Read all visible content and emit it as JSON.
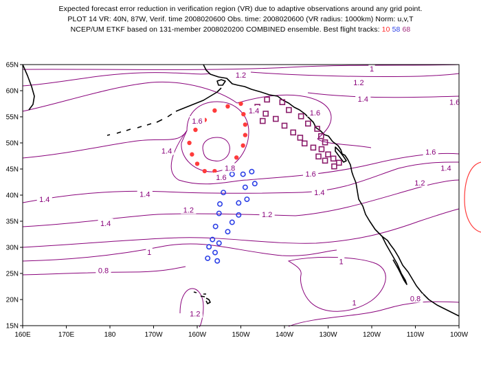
{
  "header": {
    "line1": "Expected forecast error reduction in verification region (VR) due to adaptive observations around any grid point.",
    "line2": "PLOT 14 VR: 40N, 87W, Verif. time 2008020600 Obs. time: 2008020600 (VR radius: 1000km) Norm: u,v,T",
    "line3": "NCEP/UM ETKF based on 131-member 2008020200 COMBINED ensemble.  Best flight tracks:",
    "track_ids": [
      "10",
      "58",
      "68"
    ]
  },
  "map": {
    "lat_labels": [
      "65N",
      "60N",
      "55N",
      "50N",
      "45N",
      "40N",
      "35N",
      "30N",
      "25N",
      "20N",
      "15N"
    ],
    "lon_labels": [
      "160E",
      "170E",
      "180",
      "170W",
      "160W",
      "150W",
      "140W",
      "130W",
      "120W",
      "110W",
      "100W"
    ],
    "contour_color": "#88007a",
    "contour_labels": [
      {
        "text": "1.2",
        "lon": -150,
        "lat": 63
      },
      {
        "text": "1",
        "lon": -120,
        "lat": 64.2
      },
      {
        "text": "1.2",
        "lon": -123,
        "lat": 61.6
      },
      {
        "text": "1.4",
        "lon": -122,
        "lat": 58.4
      },
      {
        "text": "1.6",
        "lon": -101,
        "lat": 57.8
      },
      {
        "text": "1.4",
        "lon": -147,
        "lat": 56.2
      },
      {
        "text": "1.6",
        "lon": -133,
        "lat": 55.8
      },
      {
        "text": "1.6",
        "lon": -160,
        "lat": 54.2
      },
      {
        "text": "1.4",
        "lon": -167,
        "lat": 48.5
      },
      {
        "text": "1.8",
        "lon": -152.5,
        "lat": 45.2
      },
      {
        "text": "1.6",
        "lon": -154.5,
        "lat": 43.4
      },
      {
        "text": "1.6",
        "lon": -134,
        "lat": 44.1
      },
      {
        "text": "1.6",
        "lon": -106.5,
        "lat": 48.3
      },
      {
        "text": "1.4",
        "lon": -103,
        "lat": 45.2
      },
      {
        "text": "1.2",
        "lon": -109,
        "lat": 42.4
      },
      {
        "text": "1.4",
        "lon": -172,
        "lat": 40.2
      },
      {
        "text": "1.4",
        "lon": -195,
        "lat": 39.2
      },
      {
        "text": "1.4",
        "lon": -132,
        "lat": 40.5
      },
      {
        "text": "1.2",
        "lon": -162,
        "lat": 37.2
      },
      {
        "text": "1.2",
        "lon": -144,
        "lat": 36.3
      },
      {
        "text": "1.4",
        "lon": -181,
        "lat": 34.6
      },
      {
        "text": "1",
        "lon": -171,
        "lat": 29.1
      },
      {
        "text": "1",
        "lon": -127,
        "lat": 27.3
      },
      {
        "text": "0.8",
        "lon": -181.5,
        "lat": 25.6
      },
      {
        "text": "1",
        "lon": -124,
        "lat": 19.4
      },
      {
        "text": "0.8",
        "lon": -110,
        "lat": 20.2
      },
      {
        "text": "1.2",
        "lon": -160.5,
        "lat": 17.3
      }
    ],
    "tracks": [
      {
        "id": "10",
        "color": "#ff3b3b",
        "marker": "filled-circle",
        "points": [
          [
            -150,
            57.5
          ],
          [
            -153,
            57
          ],
          [
            -156,
            56.2
          ],
          [
            -158.3,
            54.4
          ],
          [
            -160.4,
            52.5
          ],
          [
            -161.8,
            50
          ],
          [
            -161.2,
            47.8
          ],
          [
            -160,
            46
          ],
          [
            -158.3,
            44.6
          ],
          [
            -156,
            44.6
          ],
          [
            -153.3,
            45.4
          ],
          [
            -151,
            47.2
          ],
          [
            -149.5,
            49.5
          ],
          [
            -149,
            51.5
          ],
          [
            -149,
            53.5
          ],
          [
            -149.4,
            55.5
          ]
        ]
      },
      {
        "id": "58",
        "color": "#2b3fe6",
        "marker": "open-circle",
        "points": [
          [
            -147.5,
            44.5
          ],
          [
            -149.5,
            44
          ],
          [
            -152,
            44
          ],
          [
            -153.5,
            43.2
          ],
          [
            -146.8,
            42.2
          ],
          [
            -149,
            41.5
          ],
          [
            -154,
            40.5
          ],
          [
            -148.6,
            39.2
          ],
          [
            -150.5,
            38.5
          ],
          [
            -154.8,
            38.3
          ],
          [
            -155,
            36.5
          ],
          [
            -150.5,
            36.2
          ],
          [
            -152,
            34.8
          ],
          [
            -155.8,
            34
          ],
          [
            -153,
            33
          ],
          [
            -156.5,
            31.5
          ],
          [
            -155,
            30.8
          ],
          [
            -157.3,
            30.1
          ],
          [
            -155.9,
            29
          ],
          [
            -157.6,
            27.9
          ],
          [
            -155.4,
            27.4
          ]
        ]
      },
      {
        "id": "68",
        "color": "#8a1b6a",
        "marker": "open-square",
        "points": [
          [
            -144,
            58.3
          ],
          [
            -140.5,
            57.8
          ],
          [
            -139,
            56.3
          ],
          [
            -136.2,
            55.1
          ],
          [
            -134.6,
            53.7
          ],
          [
            -132.5,
            52.7
          ],
          [
            -131.6,
            51.3
          ],
          [
            -130.7,
            50.1
          ],
          [
            -131.5,
            48.8
          ],
          [
            -130,
            47.8
          ],
          [
            -128.8,
            47
          ],
          [
            -127.5,
            46.2
          ],
          [
            -142,
            54.6
          ],
          [
            -140,
            53.3
          ],
          [
            -138,
            52
          ],
          [
            -136.4,
            51
          ],
          [
            -135.4,
            49.9
          ],
          [
            -133.4,
            49.1
          ],
          [
            -132.2,
            47.4
          ],
          [
            -130.7,
            46.6
          ],
          [
            -128.6,
            45.5
          ],
          [
            -146.2,
            56.9
          ],
          [
            -144.3,
            55.6
          ],
          [
            -145,
            54.2
          ]
        ]
      }
    ]
  }
}
